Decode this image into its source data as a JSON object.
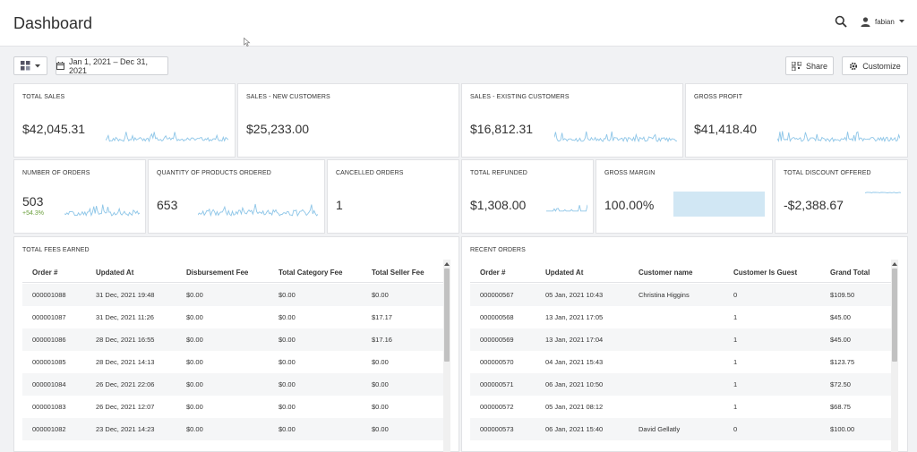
{
  "header": {
    "title": "Dashboard",
    "user_name": "fabian",
    "icons": {
      "search": "search-icon",
      "user": "user-icon",
      "caret": "caret-down-icon"
    }
  },
  "toolbar": {
    "layout_icon": "grid-layout-icon",
    "date_range": "Jan 1, 2021 – Dec 31, 2021",
    "share_label": "Share",
    "customize_label": "Customize"
  },
  "cards": {
    "total_sales": {
      "title": "TOTAL SALES",
      "value": "$42,045.31"
    },
    "sales_new": {
      "title": "SALES - NEW CUSTOMERS",
      "value": "$25,233.00"
    },
    "sales_existing": {
      "title": "SALES - EXISTING CUSTOMERS",
      "value": "$16,812.31"
    },
    "gross_profit": {
      "title": "GROSS PROFIT",
      "value": "$41,418.40"
    },
    "num_orders": {
      "title": "NUMBER OF ORDERS",
      "value": "503",
      "delta": "+54.3%"
    },
    "qty_products": {
      "title": "QUANTITY OF PRODUCTS ORDERED",
      "value": "653"
    },
    "cancelled": {
      "title": "CANCELLED ORDERS",
      "value": "1"
    },
    "refunded": {
      "title": "TOTAL REFUNDED",
      "value": "$1,308.00"
    },
    "gross_margin": {
      "title": "GROSS MARGIN",
      "value": "100.00%"
    },
    "discount": {
      "title": "TOTAL DISCOUNT OFFERED",
      "value": "-$2,388.67"
    }
  },
  "colors": {
    "spark": "#8ec6e8",
    "margin_bar": "#d1e7f4",
    "positive": "#6a9f3c"
  },
  "fees_table": {
    "title": "TOTAL FEES EARNED",
    "headers": [
      "Order #",
      "Updated At",
      "Disbursement Fee",
      "Total Category Fee",
      "Total Seller Fee"
    ],
    "rows": [
      [
        "000001088",
        "31 Dec, 2021 19:48",
        "$0.00",
        "$0.00",
        "$0.00"
      ],
      [
        "000001087",
        "31 Dec, 2021 11:26",
        "$0.00",
        "$0.00",
        "$17.17"
      ],
      [
        "000001086",
        "28 Dec, 2021 16:55",
        "$0.00",
        "$0.00",
        "$17.16"
      ],
      [
        "000001085",
        "28 Dec, 2021 14:13",
        "$0.00",
        "$0.00",
        "$0.00"
      ],
      [
        "000001084",
        "26 Dec, 2021 22:06",
        "$0.00",
        "$0.00",
        "$0.00"
      ],
      [
        "000001083",
        "26 Dec, 2021 12:07",
        "$0.00",
        "$0.00",
        "$0.00"
      ],
      [
        "000001082",
        "23 Dec, 2021 14:23",
        "$0.00",
        "$0.00",
        "$0.00"
      ]
    ]
  },
  "orders_table": {
    "title": "RECENT ORDERS",
    "headers": [
      "Order #",
      "Updated At",
      "Customer name",
      "Customer Is Guest",
      "Grand Total"
    ],
    "rows": [
      [
        "000000567",
        "05 Jan, 2021 10:43",
        "Christina Higgins",
        "0",
        "$109.50"
      ],
      [
        "000000568",
        "13 Jan, 2021 17:05",
        "",
        "1",
        "$45.00"
      ],
      [
        "000000569",
        "13 Jan, 2021 17:04",
        "",
        "1",
        "$45.00"
      ],
      [
        "000000570",
        "04 Jan, 2021 15:43",
        "",
        "1",
        "$123.75"
      ],
      [
        "000000571",
        "06 Jan, 2021 10:50",
        "",
        "1",
        "$72.50"
      ],
      [
        "000000572",
        "05 Jan, 2021 08:12",
        "",
        "1",
        "$68.75"
      ],
      [
        "000000573",
        "06 Jan, 2021 15:40",
        "David Gellatly",
        "0",
        "$100.00"
      ]
    ]
  }
}
